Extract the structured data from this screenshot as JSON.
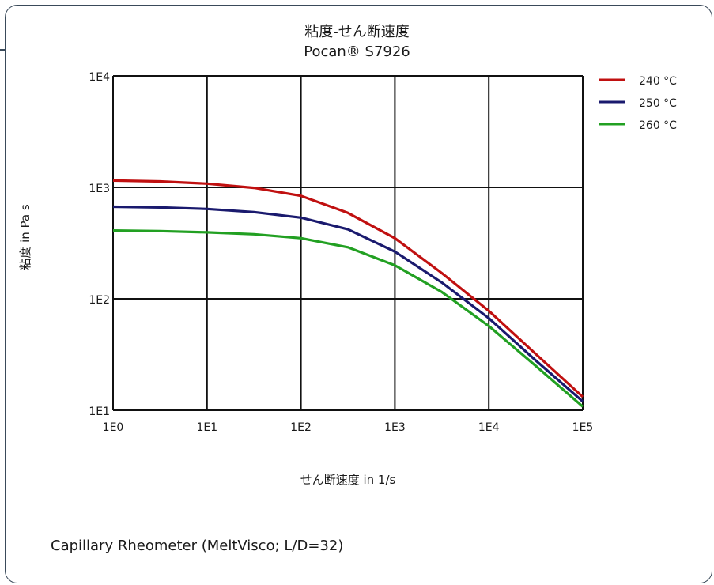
{
  "chart_data": {
    "type": "line",
    "title": "粘度-せん断速度",
    "subtitle": "Pocan® S7926",
    "xlabel": "せん断速度 in 1/s",
    "ylabel": "粘度 in Pa s",
    "xscale": "log",
    "yscale": "log",
    "xlim": [
      1,
      100000
    ],
    "ylim": [
      10,
      10000
    ],
    "grid": true,
    "legend_position": "right",
    "x_tick_labels": [
      "1E0",
      "1E1",
      "1E2",
      "1E3",
      "1E4",
      "1E5"
    ],
    "y_tick_labels": [
      "1E1",
      "1E2",
      "1E3",
      "1E4"
    ],
    "series": [
      {
        "name": "240 °C",
        "color": "#c01010",
        "points": [
          [
            1,
            1150
          ],
          [
            3.16,
            1130
          ],
          [
            10,
            1080
          ],
          [
            31.6,
            990
          ],
          [
            100,
            840
          ],
          [
            316,
            590
          ],
          [
            1000,
            350
          ],
          [
            3162,
            170
          ],
          [
            10000,
            78
          ],
          [
            31623,
            32
          ],
          [
            100000,
            13.2
          ]
        ]
      },
      {
        "name": "250 °C",
        "color": "#1a1a6e",
        "points": [
          [
            1,
            670
          ],
          [
            3.16,
            660
          ],
          [
            10,
            640
          ],
          [
            31.6,
            600
          ],
          [
            100,
            535
          ],
          [
            316,
            420
          ],
          [
            1000,
            265
          ],
          [
            3162,
            140
          ],
          [
            10000,
            67
          ],
          [
            31623,
            28
          ],
          [
            100000,
            12
          ]
        ]
      },
      {
        "name": "260 °C",
        "color": "#22a022",
        "points": [
          [
            1,
            410
          ],
          [
            3.16,
            405
          ],
          [
            10,
            395
          ],
          [
            31.6,
            380
          ],
          [
            100,
            350
          ],
          [
            316,
            290
          ],
          [
            1000,
            200
          ],
          [
            3162,
            115
          ],
          [
            10000,
            57
          ],
          [
            31623,
            25
          ],
          [
            100000,
            10.8
          ]
        ]
      }
    ]
  },
  "footnote": "Capillary Rheometer (MeltVisco; L/D=32)"
}
